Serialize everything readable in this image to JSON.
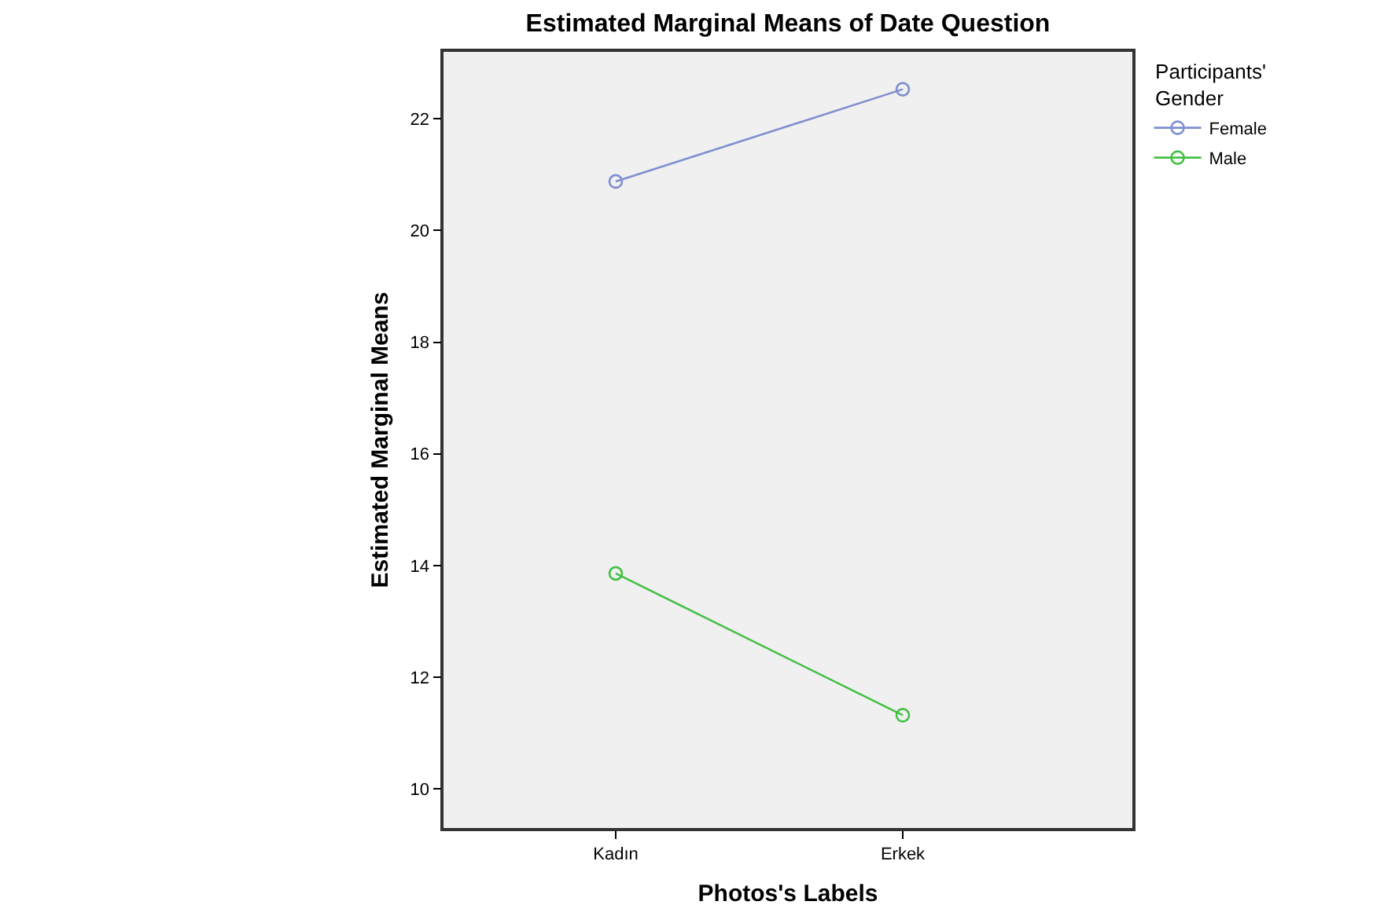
{
  "chart_data": {
    "type": "line",
    "title": "Estimated Marginal Means of Date Question",
    "xlabel": "Photos's Labels",
    "ylabel": "Estimated Marginal Means",
    "legend_title": "Participants' Gender",
    "categories": [
      "Kadın",
      "Erkek"
    ],
    "series": [
      {
        "name": "Female",
        "color": "#7f8fd0",
        "values": [
          20.88,
          22.53
        ]
      },
      {
        "name": "Male",
        "color": "#45c045",
        "values": [
          13.86,
          11.32
        ]
      }
    ],
    "ylim": [
      9.3,
      23.2
    ],
    "yticks": [
      10,
      12,
      14,
      16,
      18,
      20,
      22
    ],
    "grid": false,
    "legend": "top right",
    "marker": "circle",
    "line_style": "solid"
  }
}
